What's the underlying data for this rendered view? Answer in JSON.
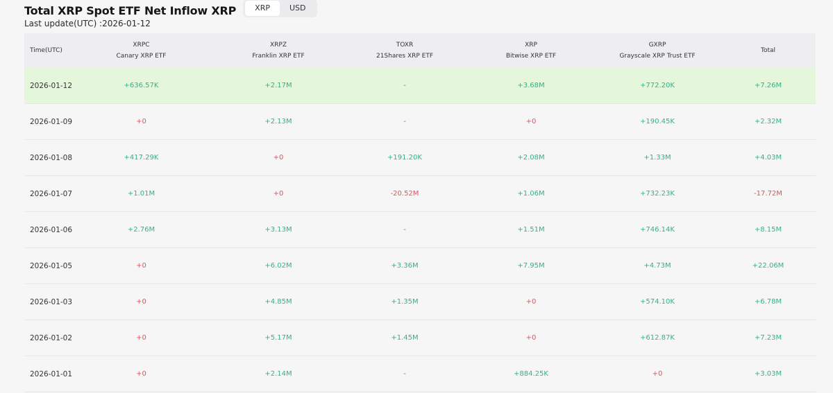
{
  "header": {
    "title": "Total XRP Spot ETF Net Inflow XRP",
    "toggle": [
      "XRP",
      "USD"
    ],
    "active_toggle": "XRP"
  },
  "last_update": "Last update(UTC) :2026-01-12",
  "colors": {
    "positive": "#2bb48c",
    "negative": "#e5505a",
    "highlight_row": "#e4f7db"
  },
  "table": {
    "date_header": "Time(UTC)",
    "columns": [
      {
        "ticker": "XRPC",
        "fund": "Canary XRP ETF"
      },
      {
        "ticker": "XRPZ",
        "fund": "Franklin XRP ETF"
      },
      {
        "ticker": "TOXR",
        "fund": "21Shares XRP ETF"
      },
      {
        "ticker": "XRP",
        "fund": "Bitwise XRP ETF"
      },
      {
        "ticker": "GXRP",
        "fund": "Grayscale XRP Trust ETF"
      },
      {
        "ticker": "Total",
        "fund": ""
      }
    ],
    "rows": [
      {
        "date": "2026-01-12",
        "values": [
          "+636.57K",
          "+2.17M",
          "-",
          "+3.68M",
          "+772.20K",
          "+7.26M"
        ],
        "highlight": true
      },
      {
        "date": "2026-01-09",
        "values": [
          "+0",
          "+2.13M",
          "-",
          "+0",
          "+190.45K",
          "+2.32M"
        ]
      },
      {
        "date": "2026-01-08",
        "values": [
          "+417.29K",
          "+0",
          "+191.20K",
          "+2.08M",
          "+1.33M",
          "+4.03M"
        ]
      },
      {
        "date": "2026-01-07",
        "values": [
          "+1.01M",
          "+0",
          "-20.52M",
          "+1.06M",
          "+732.23K",
          "-17.72M"
        ]
      },
      {
        "date": "2026-01-06",
        "values": [
          "+2.76M",
          "+3.13M",
          "-",
          "+1.51M",
          "+746.14K",
          "+8.15M"
        ]
      },
      {
        "date": "2026-01-05",
        "values": [
          "+0",
          "+6.02M",
          "+3.36M",
          "+7.95M",
          "+4.73M",
          "+22.06M"
        ]
      },
      {
        "date": "2026-01-03",
        "values": [
          "+0",
          "+4.85M",
          "+1.35M",
          "+0",
          "+574.10K",
          "+6.78M"
        ]
      },
      {
        "date": "2026-01-02",
        "values": [
          "+0",
          "+5.17M",
          "+1.45M",
          "+0",
          "+612.87K",
          "+7.23M"
        ]
      },
      {
        "date": "2026-01-01",
        "values": [
          "+0",
          "+2.14M",
          "-",
          "+884.25K",
          "+0",
          "+3.03M"
        ]
      }
    ]
  }
}
